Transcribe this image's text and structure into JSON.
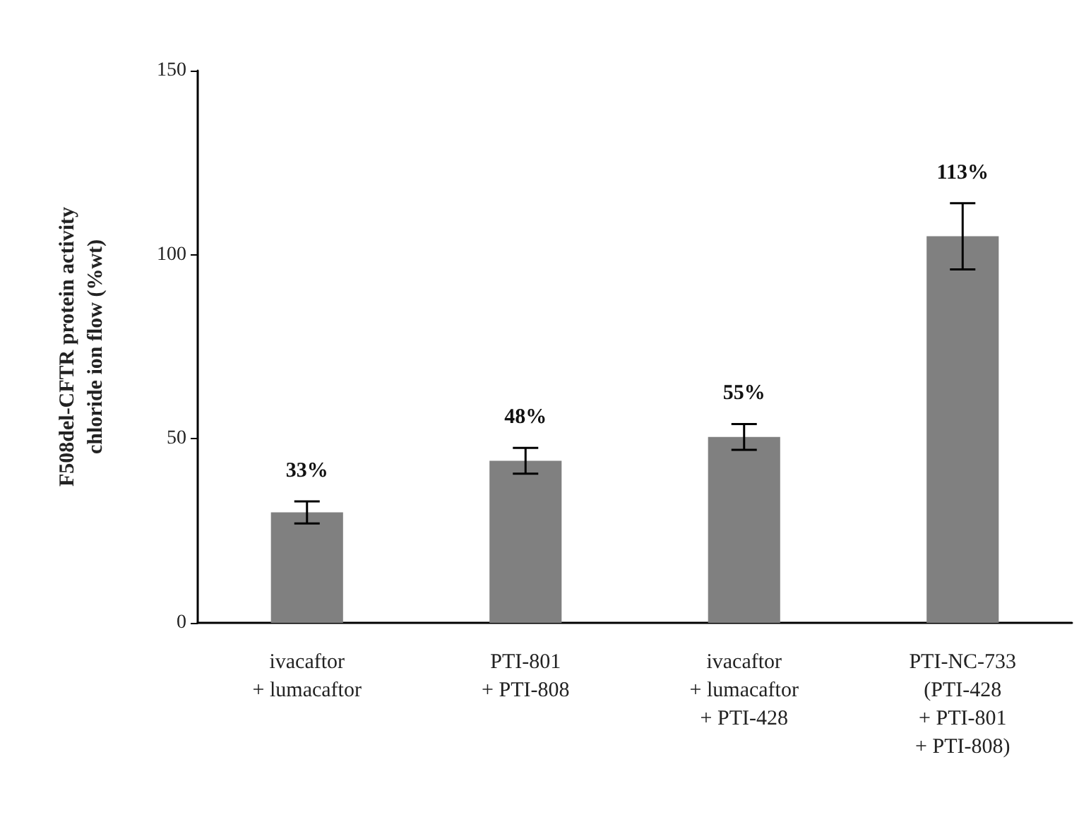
{
  "chart_data": {
    "type": "bar",
    "ylabel": "F508del-CFTR protein activity\nchloride ion flow (%wt)",
    "categories": [
      "ivacaftor\n+ lumacaftor",
      "PTI-801\n+ PTI-808",
      "ivacaftor\n+ lumacaftor\n+ PTI-428",
      "PTI-NC-733\n(PTI-428\n+ PTI-801\n+ PTI-808)"
    ],
    "values": [
      30,
      44,
      50.5,
      105
    ],
    "errors": [
      3,
      3.5,
      3.5,
      9
    ],
    "annotations": [
      "33%",
      "48%",
      "55%",
      "113%"
    ],
    "color": "#808080",
    "ylim": [
      0,
      150
    ],
    "yticks": [
      0,
      50,
      100,
      150
    ],
    "grid": false
  }
}
